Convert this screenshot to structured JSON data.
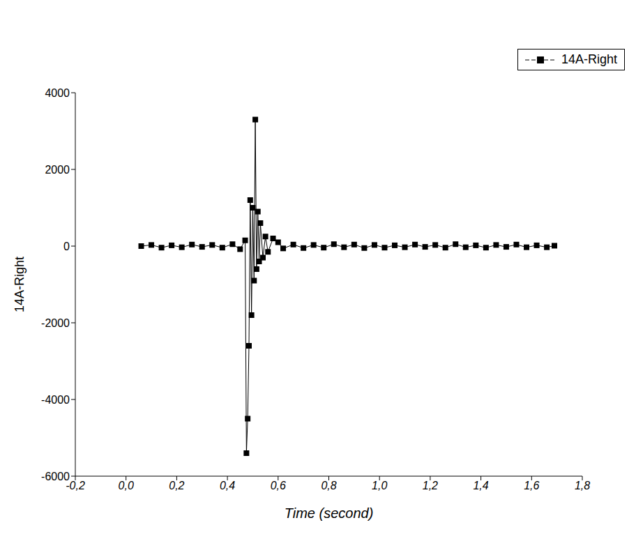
{
  "chart_data": {
    "type": "line",
    "x_label": "Time (second)",
    "y_label": "14A-Right",
    "legend": "top-right",
    "xlim": [
      -0.2,
      1.8
    ],
    "xticks": [
      {
        "value": -0.2,
        "label": "-0,2"
      },
      {
        "value": 0.0,
        "label": "0,0"
      },
      {
        "value": 0.2,
        "label": "0,2"
      },
      {
        "value": 0.4,
        "label": "0,4"
      },
      {
        "value": 0.6,
        "label": "0,6"
      },
      {
        "value": 0.8,
        "label": "0,8"
      },
      {
        "value": 1.0,
        "label": "1,0"
      },
      {
        "value": 1.2,
        "label": "1,2"
      },
      {
        "value": 1.4,
        "label": "1,4"
      },
      {
        "value": 1.6,
        "label": "1,6"
      },
      {
        "value": 1.8,
        "label": "1,8"
      }
    ],
    "ylim": [
      -6000,
      4000
    ],
    "yticks": [
      -6000,
      -4000,
      -2000,
      0,
      2000,
      4000
    ],
    "series": [
      {
        "name": "14A-Right",
        "color": "#000000",
        "marker": "square",
        "x": [
          0.06,
          0.1,
          0.14,
          0.18,
          0.22,
          0.26,
          0.3,
          0.34,
          0.38,
          0.42,
          0.45,
          0.47,
          0.475,
          0.48,
          0.485,
          0.49,
          0.495,
          0.5,
          0.505,
          0.51,
          0.515,
          0.52,
          0.525,
          0.53,
          0.54,
          0.55,
          0.56,
          0.58,
          0.6,
          0.62,
          0.66,
          0.7,
          0.74,
          0.78,
          0.82,
          0.86,
          0.9,
          0.94,
          0.98,
          1.02,
          1.06,
          1.1,
          1.14,
          1.18,
          1.22,
          1.26,
          1.3,
          1.34,
          1.38,
          1.42,
          1.46,
          1.5,
          1.54,
          1.58,
          1.62,
          1.66,
          1.69
        ],
        "values": [
          0,
          30,
          -40,
          20,
          -30,
          40,
          -20,
          30,
          -40,
          50,
          -80,
          150,
          -5400,
          -4500,
          -2600,
          1200,
          -1800,
          1000,
          -900,
          3300,
          -600,
          900,
          -400,
          600,
          -300,
          250,
          -150,
          200,
          100,
          -60,
          40,
          -50,
          30,
          -40,
          50,
          -30,
          40,
          -50,
          30,
          -40,
          20,
          -30,
          40,
          -20,
          30,
          -40,
          50,
          -30,
          20,
          -40,
          30,
          -20,
          40,
          -30,
          20,
          -30,
          10
        ]
      }
    ]
  }
}
